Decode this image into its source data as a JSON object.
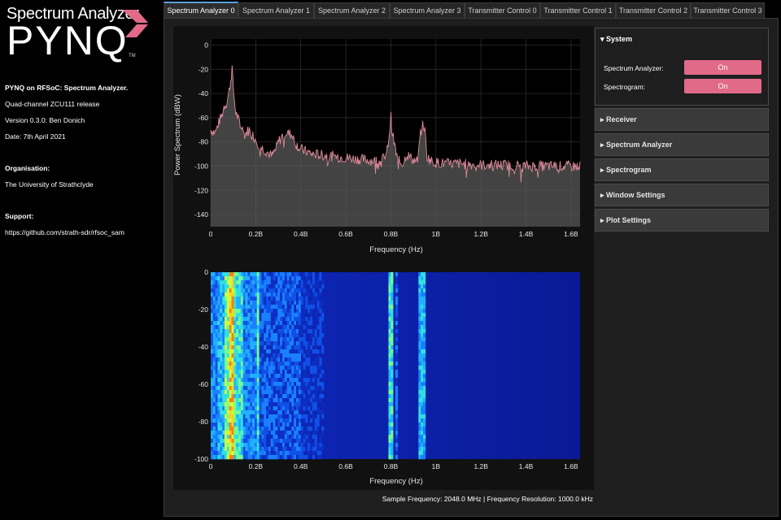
{
  "logo": {
    "line1": "Spectrum Analyzer",
    "line2": "PYNQ",
    "tm": "TM"
  },
  "info": {
    "title": "PYNQ on RFSoC: Spectrum Analyzer.",
    "subtitle": "Quad-channel ZCU111 release",
    "version": "Version 0.3.0: Ben Donich",
    "date": "Date: 7th April 2021",
    "org_label": "Organisation:",
    "org_value": "The University of Strathclyde",
    "support_label": "Support:",
    "support_value": "https://github.com/strath-sdr/rfsoc_sam"
  },
  "tabs": [
    "Spectrum Analyzer 0",
    "Spectrum Analyzer 1",
    "Spectrum Analyzer 2",
    "Spectrum Analyzer 3",
    "Transmitter Control 0",
    "Transmitter Control 1",
    "Transmitter Control 2",
    "Transmitter Control 3"
  ],
  "active_tab": 0,
  "system": {
    "title": "System",
    "spectrum_label": "Spectrum Analyzer:",
    "spectrum_value": "On",
    "spectrogram_label": "Spectrogram:",
    "spectrogram_value": "On"
  },
  "sections": [
    "Receiver",
    "Spectrum Analyzer",
    "Spectrogram",
    "Window Settings",
    "Plot Settings"
  ],
  "footer": "Sample Frequency: 2048.0 MHz | Frequency Resolution: 1000.0 kHz",
  "colors": {
    "accent": "#e26a89",
    "trace": "#e08c9a",
    "tab_active_border": "#5aa0dc",
    "spectrogram_bg": "#0a1a96"
  },
  "icons": {
    "section_collapsed": "caret-right-icon",
    "section_expanded": "caret-down-icon"
  },
  "chart_data": [
    {
      "type": "area",
      "xlabel": "Frequency (Hz)",
      "ylabel": "Power Spectrum (dBW)",
      "xlim": [
        0,
        1.64
      ],
      "ylim": [
        -150,
        5
      ],
      "x_ticks": [
        "0",
        "0.2B",
        "0.4B",
        "0.6B",
        "0.8B",
        "1B",
        "1.2B",
        "1.4B",
        "1.6B"
      ],
      "x_tick_values": [
        0,
        0.2,
        0.4,
        0.6,
        0.8,
        1.0,
        1.2,
        1.4,
        1.6
      ],
      "y_ticks": [
        "0",
        "-20",
        "-40",
        "-60",
        "-80",
        "-100",
        "-120",
        "-140"
      ],
      "y_tick_values": [
        0,
        -20,
        -40,
        -60,
        -80,
        -100,
        -120,
        -140
      ],
      "grid": true,
      "x": [
        0,
        0.02,
        0.04,
        0.05,
        0.06,
        0.07,
        0.08,
        0.09,
        0.095,
        0.1,
        0.11,
        0.13,
        0.15,
        0.17,
        0.2,
        0.22,
        0.25,
        0.27,
        0.29,
        0.3,
        0.33,
        0.36,
        0.38,
        0.4,
        0.45,
        0.5,
        0.55,
        0.6,
        0.65,
        0.7,
        0.75,
        0.78,
        0.795,
        0.8,
        0.805,
        0.83,
        0.85,
        0.86,
        0.87,
        0.9,
        0.92,
        0.93,
        0.94,
        0.95,
        0.96,
        0.98,
        1.0,
        1.05,
        1.1,
        1.2,
        1.3,
        1.4,
        1.5,
        1.6,
        1.64
      ],
      "y": [
        -70,
        -72,
        -62,
        -58,
        -50,
        -48,
        -40,
        -28,
        -18,
        -35,
        -55,
        -65,
        -74,
        -70,
        -78,
        -84,
        -88,
        -92,
        -86,
        -80,
        -72,
        -74,
        -82,
        -86,
        -90,
        -91,
        -92,
        -93,
        -94,
        -95,
        -96,
        -92,
        -70,
        -58,
        -72,
        -95,
        -98,
        -95,
        -90,
        -95,
        -96,
        -75,
        -66,
        -68,
        -92,
        -96,
        -97,
        -98,
        -98,
        -99,
        -99,
        -100,
        -100,
        -100,
        -100
      ]
    },
    {
      "type": "heatmap",
      "xlabel": "Frequency (Hz)",
      "xlim": [
        0,
        1.64
      ],
      "ylim": [
        -100,
        0
      ],
      "x_ticks": [
        "0",
        "0.2B",
        "0.4B",
        "0.6B",
        "0.8B",
        "1B",
        "1.2B",
        "1.4B",
        "1.6B"
      ],
      "x_tick_values": [
        0,
        0.2,
        0.4,
        0.6,
        0.8,
        1.0,
        1.2,
        1.4,
        1.6
      ],
      "y_ticks": [
        "0",
        "-20",
        "-40",
        "-60",
        "-80",
        "-100"
      ],
      "y_tick_values": [
        0,
        -20,
        -40,
        -60,
        -80,
        -100
      ],
      "colorscale": "jet"
    }
  ]
}
